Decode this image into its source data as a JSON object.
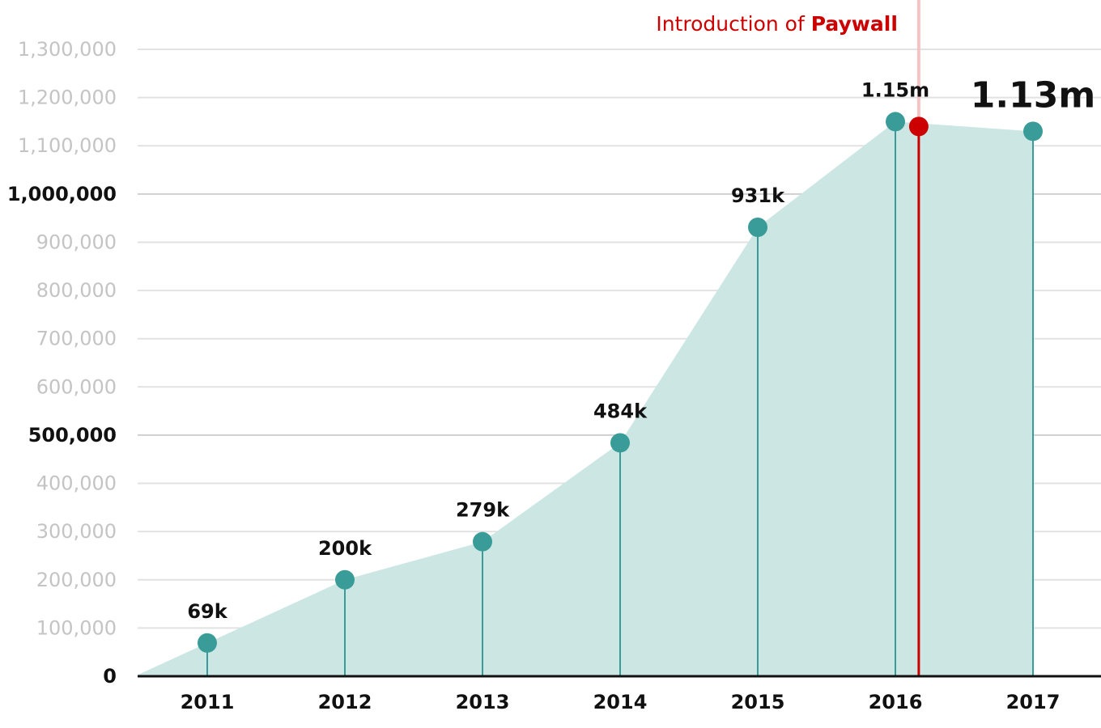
{
  "chart_data": {
    "type": "area",
    "title": "",
    "xlabel": "",
    "ylabel": "",
    "x": [
      "2011",
      "2012",
      "2013",
      "2014",
      "2015",
      "2016",
      "2017"
    ],
    "values": [
      69000,
      200000,
      279000,
      484000,
      931000,
      1150000,
      1130000
    ],
    "data_labels": [
      "69k",
      "200k",
      "279k",
      "484k",
      "931k",
      "1.15m",
      "1.13m"
    ],
    "highlight_label_index": 6,
    "ylim": [
      0,
      1300000
    ],
    "y_ticks": [
      0,
      100000,
      200000,
      300000,
      400000,
      500000,
      600000,
      700000,
      800000,
      900000,
      1000000,
      1100000,
      1200000,
      1300000
    ],
    "y_tick_labels": [
      "0",
      "100,000",
      "200,000",
      "300,000",
      "400,000",
      "500,000",
      "600,000",
      "700,000",
      "800,000",
      "900,000",
      "1,000,000",
      "1,100,000",
      "1,200,000",
      "1,300,000"
    ],
    "y_major_ticks": [
      0,
      500000,
      1000000
    ],
    "grid": true,
    "annotation": {
      "text_prefix": "Introduction of ",
      "text_emphasis": "Paywall",
      "x": 2016.17,
      "y": 1140000
    },
    "colors": {
      "area": "#cce6e4",
      "marker": "#3a9c98",
      "annotation": "#cc0000",
      "annotation_band": "#f4c4c4",
      "grid": "#e2e2e2",
      "grid_major": "#cfcfcf",
      "axis": "#111111"
    }
  }
}
